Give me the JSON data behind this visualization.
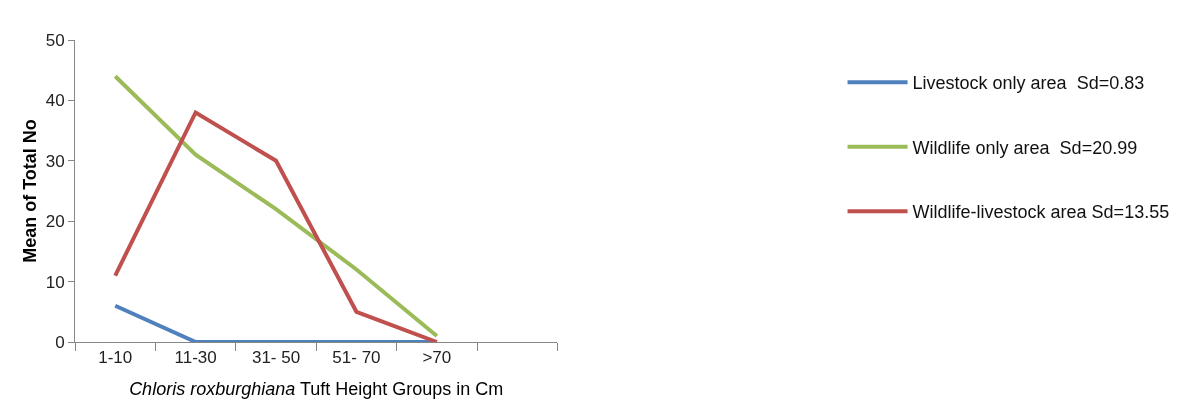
{
  "chart_data": {
    "type": "line",
    "xlabel": "Chloris roxburghiana Tuft Height Groups in Cm",
    "ylabel": "Mean of Total No",
    "categories": [
      "1-10",
      "11-30",
      "31- 50",
      "51- 70",
      ">70",
      null
    ],
    "series": [
      {
        "name": "Livestock only area  Sd=0.83",
        "color": "#4f81bd",
        "values": [
          6,
          0,
          0,
          0,
          0,
          null
        ]
      },
      {
        "name": "Wildlife only area  Sd=20.99",
        "color": "#9bbb59",
        "values": [
          44,
          31,
          22,
          12,
          1,
          null
        ]
      },
      {
        "name": "Wildlife-livestock area Sd=13.55",
        "color": "#c0504d",
        "values": [
          11,
          38,
          30,
          5,
          0,
          null
        ]
      }
    ],
    "ylim": [
      0,
      50
    ],
    "yticks": [
      0,
      10,
      20,
      30,
      40,
      50
    ],
    "legend": "right",
    "marker": "none",
    "line_style": "solid"
  }
}
